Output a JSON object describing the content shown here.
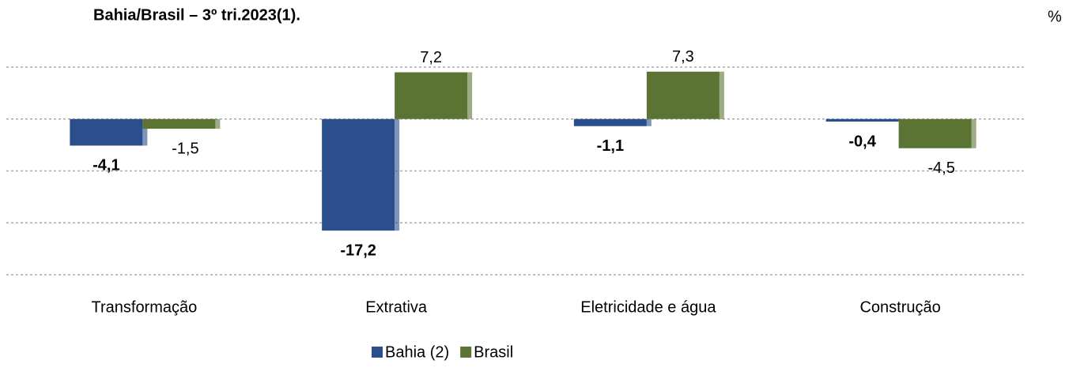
{
  "chart_data": {
    "type": "bar",
    "title": "Bahia/Brasil – 3º tri.2023(1).",
    "unit": "%",
    "categories": [
      "Transformação",
      "Extrativa",
      "Eletricidade e água",
      "Construção"
    ],
    "series": [
      {
        "name": "Bahia (2)",
        "color": "#2b4f8c",
        "values": [
          -4.1,
          -17.2,
          -1.1,
          -0.4
        ],
        "value_labels": [
          "-4,1",
          "-17,2",
          "-1,1",
          "-0,4"
        ]
      },
      {
        "name": "Brasil",
        "color": "#5b7434",
        "values": [
          -1.5,
          7.2,
          7.3,
          -4.5
        ],
        "value_labels": [
          "-1,5",
          "7,2",
          "7,3",
          "-4,5"
        ]
      }
    ],
    "ylim": [
      -24,
      8
    ],
    "yticks": [
      -24,
      -16,
      -8,
      0,
      8
    ],
    "grid": true
  }
}
